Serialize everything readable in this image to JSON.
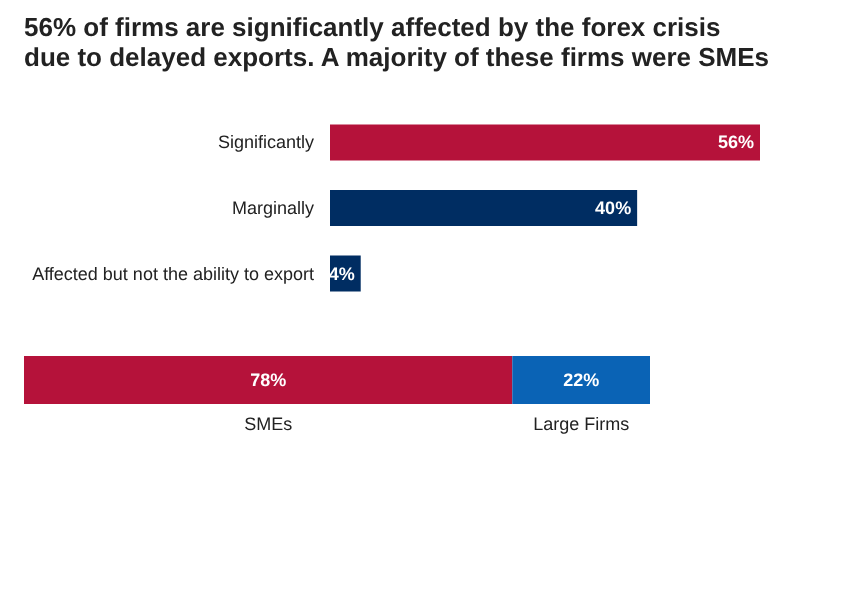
{
  "chart_data": [
    {
      "type": "bar",
      "title": [
        "56% of firms are significantly affected by the forex crisis",
        "due to delayed exports. A majority of these firms were SMEs"
      ],
      "orientation": "horizontal",
      "categories": [
        "Significantly",
        "Marginally",
        "Affected but not the ability to export"
      ],
      "values": [
        56,
        40,
        4
      ],
      "colors": [
        "#b5123a",
        "#002d62",
        "#002d62"
      ],
      "value_labels": [
        "56%",
        "40%",
        "4%"
      ],
      "legend": false,
      "grid": false,
      "tick_labels": "y"
    },
    {
      "type": "bar",
      "orientation": "horizontal",
      "stacked": true,
      "categories": [
        null
      ],
      "legend": false,
      "grid": false,
      "tick_labels": false,
      "series": [
        {
          "name": "SMEs",
          "color": "#b5123a",
          "values": [
            78
          ],
          "value_labels": [
            "78%"
          ]
        },
        {
          "name": "Large Firms",
          "color": "#0a63b5",
          "values": [
            22
          ],
          "value_labels": [
            "22%"
          ]
        }
      ]
    }
  ]
}
